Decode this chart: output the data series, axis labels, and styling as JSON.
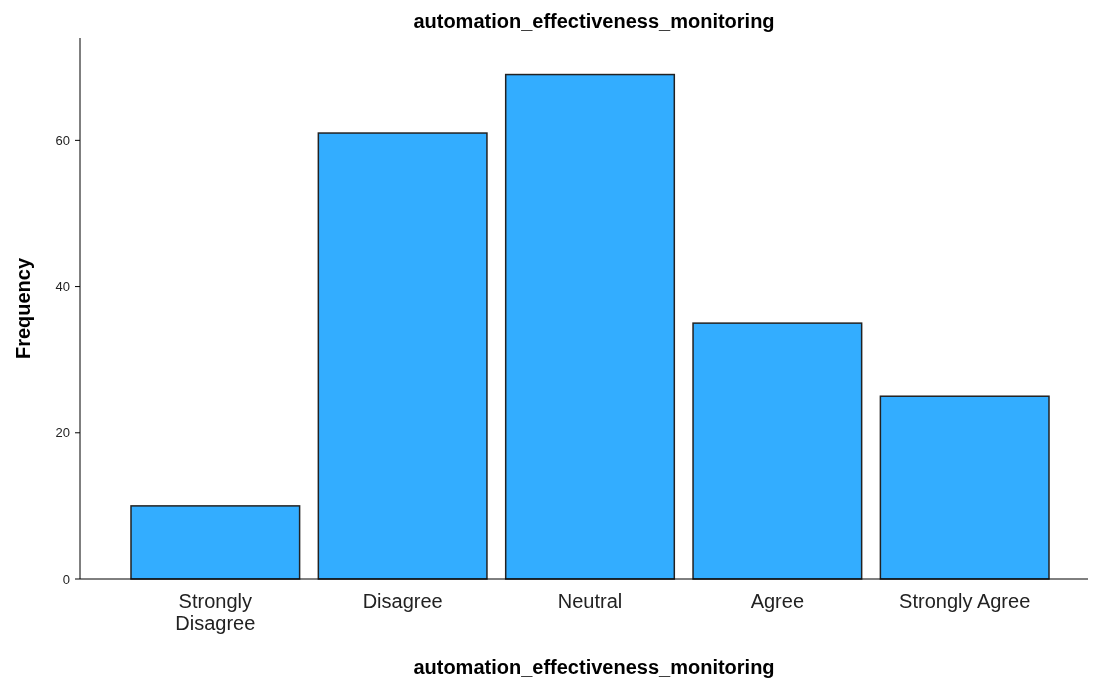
{
  "chart_data": {
    "type": "bar",
    "title": "automation_effectiveness_monitoring",
    "xlabel": "automation_effectiveness_monitoring",
    "ylabel": "Frequency",
    "categories": [
      "Strongly Disagree",
      "Disagree",
      "Neutral",
      "Agree",
      "Strongly Agree"
    ],
    "values": [
      10,
      61,
      69,
      35,
      25
    ],
    "color": "#33adff",
    "ylim": [
      0,
      74
    ],
    "yticks": [
      0,
      20,
      40,
      60
    ],
    "grid": false
  }
}
